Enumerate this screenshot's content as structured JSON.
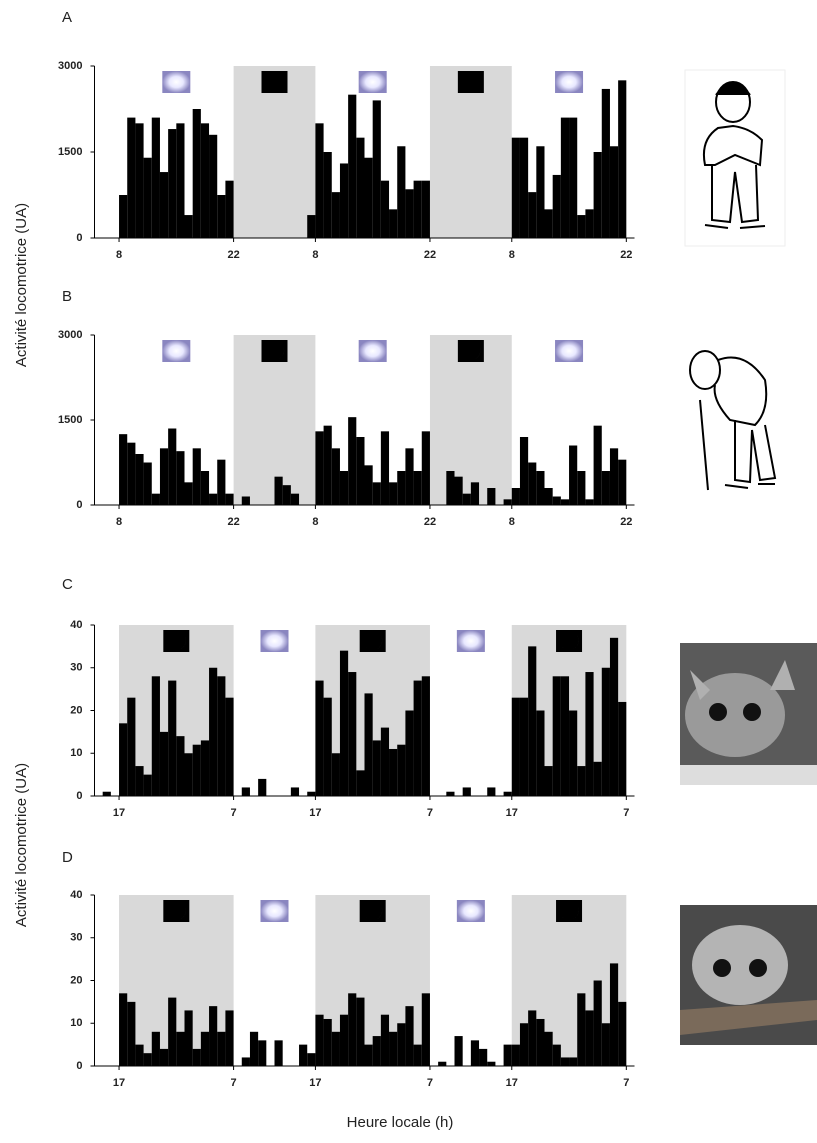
{
  "chart_data": [
    {
      "type": "bar",
      "label": "A",
      "ylabel": "Activité locomotrice (UA)",
      "color": "#000000",
      "xlim": [
        -3,
        63
      ],
      "ylim": [
        0,
        3000
      ],
      "yticks": [
        0,
        1500,
        3000
      ],
      "xticks": [
        {
          "value": 0,
          "label": "8"
        },
        {
          "value": 14,
          "label": "22"
        },
        {
          "value": 24,
          "label": "8"
        },
        {
          "value": 38,
          "label": "22"
        },
        {
          "value": 48,
          "label": "8"
        },
        {
          "value": 62,
          "label": "22"
        }
      ],
      "x": [
        0,
        1,
        2,
        3,
        4,
        5,
        6,
        7,
        8,
        9,
        10,
        11,
        12,
        13,
        14,
        15,
        16,
        17,
        18,
        19,
        20,
        21,
        22,
        23,
        24,
        25,
        26,
        27,
        28,
        29,
        30,
        31,
        32,
        33,
        34,
        35,
        36,
        37,
        38,
        39,
        40,
        41,
        42,
        43,
        44,
        45,
        46,
        47,
        48,
        49,
        50,
        51,
        52,
        53,
        54,
        55,
        56,
        57,
        58,
        59,
        60,
        61
      ],
      "values": [
        750,
        2100,
        2000,
        1400,
        2100,
        1150,
        1900,
        2000,
        400,
        2250,
        2000,
        1800,
        750,
        1000,
        0,
        0,
        0,
        0,
        0,
        0,
        0,
        0,
        0,
        400,
        2000,
        1500,
        800,
        1300,
        2500,
        1750,
        1400,
        2400,
        1000,
        500,
        1600,
        850,
        1000,
        1000,
        0,
        0,
        0,
        0,
        0,
        0,
        0,
        0,
        0,
        0,
        1750,
        1750,
        800,
        1600,
        500,
        1100,
        2100,
        2100,
        400,
        500,
        1500,
        2600,
        1600,
        2750
      ]
    },
    {
      "type": "bar",
      "label": "B",
      "color": "#000000",
      "xlim": [
        -3,
        63
      ],
      "ylim": [
        0,
        3000
      ],
      "yticks": [
        0,
        1500,
        3000
      ],
      "xticks": [
        {
          "value": 0,
          "label": "8"
        },
        {
          "value": 14,
          "label": "22"
        },
        {
          "value": 24,
          "label": "8"
        },
        {
          "value": 38,
          "label": "22"
        },
        {
          "value": 48,
          "label": "8"
        },
        {
          "value": 62,
          "label": "22"
        }
      ],
      "x": [
        0,
        1,
        2,
        3,
        4,
        5,
        6,
        7,
        8,
        9,
        10,
        11,
        12,
        13,
        14,
        15,
        16,
        17,
        18,
        19,
        20,
        21,
        22,
        23,
        24,
        25,
        26,
        27,
        28,
        29,
        30,
        31,
        32,
        33,
        34,
        35,
        36,
        37,
        38,
        39,
        40,
        41,
        42,
        43,
        44,
        45,
        46,
        47,
        48,
        49,
        50,
        51,
        52,
        53,
        54,
        55,
        56,
        57,
        58,
        59,
        60,
        61
      ],
      "values": [
        1250,
        1100,
        900,
        750,
        200,
        1000,
        1350,
        950,
        400,
        1000,
        600,
        200,
        800,
        200,
        0,
        150,
        0,
        0,
        0,
        500,
        350,
        200,
        0,
        0,
        1300,
        1400,
        1000,
        600,
        1550,
        1200,
        700,
        400,
        1300,
        400,
        600,
        1000,
        600,
        1300,
        0,
        0,
        600,
        500,
        200,
        400,
        0,
        300,
        0,
        100,
        300,
        1200,
        750,
        600,
        300,
        150,
        100,
        1050,
        600,
        100,
        1400,
        600,
        1000,
        800
      ]
    },
    {
      "type": "bar",
      "label": "C",
      "ylabel": "Activité locomotrice (UA)",
      "color": "#000000",
      "xlim": [
        -3,
        63
      ],
      "ylim": [
        0,
        40
      ],
      "yticks": [
        0,
        10,
        20,
        30,
        40
      ],
      "xticks": [
        {
          "value": 0,
          "label": "17"
        },
        {
          "value": 14,
          "label": "7"
        },
        {
          "value": 24,
          "label": "17"
        },
        {
          "value": 38,
          "label": "7"
        },
        {
          "value": 48,
          "label": "17"
        },
        {
          "value": 62,
          "label": "7"
        }
      ],
      "x": [
        -2,
        0,
        1,
        2,
        3,
        4,
        5,
        6,
        7,
        8,
        9,
        10,
        11,
        12,
        13,
        14,
        15,
        16,
        17,
        18,
        19,
        20,
        21,
        22,
        23,
        24,
        25,
        26,
        27,
        28,
        29,
        30,
        31,
        32,
        33,
        34,
        35,
        36,
        37,
        38,
        39,
        40,
        41,
        42,
        43,
        44,
        45,
        46,
        47,
        48,
        49,
        50,
        51,
        52,
        53,
        54,
        55,
        56,
        57,
        58,
        59,
        60,
        61
      ],
      "values": [
        1,
        17,
        23,
        7,
        5,
        28,
        15,
        27,
        14,
        10,
        12,
        13,
        30,
        28,
        23,
        0,
        2,
        0,
        4,
        0,
        0,
        0,
        2,
        0,
        1,
        27,
        23,
        10,
        34,
        29,
        6,
        24,
        13,
        16,
        11,
        12,
        20,
        27,
        28,
        0,
        0,
        1,
        0,
        2,
        0,
        0,
        2,
        0,
        1,
        23,
        23,
        35,
        20,
        7,
        28,
        28,
        20,
        7,
        29,
        8,
        30,
        37,
        22
      ]
    },
    {
      "type": "bar",
      "label": "D",
      "xlabel": "Heure locale (h)",
      "color": "#000000",
      "xlim": [
        -3,
        63
      ],
      "ylim": [
        0,
        40
      ],
      "yticks": [
        0,
        10,
        20,
        30,
        40
      ],
      "xticks": [
        {
          "value": 0,
          "label": "17"
        },
        {
          "value": 14,
          "label": "7"
        },
        {
          "value": 24,
          "label": "17"
        },
        {
          "value": 38,
          "label": "7"
        },
        {
          "value": 48,
          "label": "17"
        },
        {
          "value": 62,
          "label": "7"
        }
      ],
      "x": [
        0,
        1,
        2,
        3,
        4,
        5,
        6,
        7,
        8,
        9,
        10,
        11,
        12,
        13,
        14,
        15,
        16,
        17,
        18,
        19,
        20,
        21,
        22,
        23,
        24,
        25,
        26,
        27,
        28,
        29,
        30,
        31,
        32,
        33,
        34,
        35,
        36,
        37,
        38,
        39,
        40,
        41,
        42,
        43,
        44,
        45,
        46,
        47,
        48,
        49,
        50,
        51,
        52,
        53,
        54,
        55,
        56,
        57,
        58,
        59,
        60,
        61
      ],
      "values": [
        17,
        15,
        5,
        3,
        8,
        4,
        16,
        8,
        13,
        4,
        8,
        14,
        8,
        13,
        0,
        2,
        8,
        6,
        0,
        6,
        0,
        0,
        5,
        3,
        12,
        11,
        8,
        12,
        17,
        16,
        5,
        7,
        12,
        8,
        10,
        14,
        5,
        17,
        0,
        1,
        0,
        7,
        0,
        6,
        4,
        1,
        0,
        5,
        5,
        10,
        13,
        11,
        8,
        5,
        2,
        2,
        17,
        13,
        20,
        10,
        24,
        15
      ]
    }
  ]
}
